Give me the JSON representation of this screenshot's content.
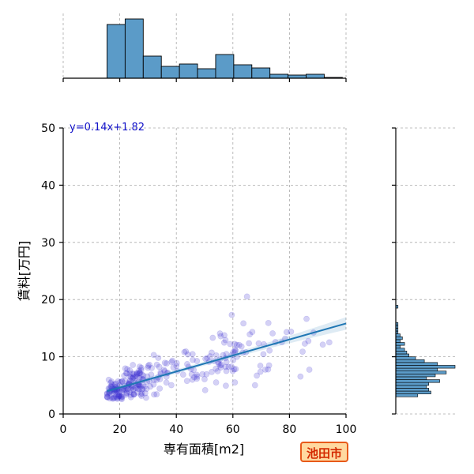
{
  "chart_data": {
    "type": "scatter",
    "xlabel": "専有面積[m2]",
    "ylabel": "賃料[万円]",
    "xlim": [
      0,
      100
    ],
    "ylim": [
      0,
      50
    ],
    "xticks": [
      0,
      20,
      40,
      60,
      80,
      100
    ],
    "yticks": [
      0,
      10,
      20,
      30,
      40,
      50
    ],
    "grid": true,
    "regression": {
      "equation": "y=0.14x+1.82",
      "slope": 0.14,
      "intercept": 1.82,
      "x_range": [
        15.5,
        100
      ],
      "color": "#1f77b4"
    },
    "scatter_color": "#3a2fd0",
    "top_histogram": {
      "bin_edges": [
        15.5,
        21.9,
        28.3,
        34.7,
        41.1,
        47.5,
        53.9,
        60.3,
        66.7,
        73.1,
        79.5,
        85.9,
        92.3,
        98.7
      ],
      "counts": [
        68,
        75,
        28,
        15,
        18,
        12,
        30,
        17,
        13,
        5,
        4,
        5,
        1
      ],
      "color": "#5b9bc8"
    },
    "right_histogram": {
      "bin_edges": [
        3,
        3.5,
        4,
        4.5,
        5,
        5.5,
        6,
        6.5,
        7,
        7.5,
        8,
        8.5,
        9,
        9.5,
        10,
        10.5,
        11,
        11.5,
        12,
        12.5,
        13,
        13.5,
        14,
        14.5,
        15,
        15.5,
        16,
        16.5,
        17,
        17.5,
        18,
        18.5,
        19
      ],
      "counts": [
        10,
        16,
        15,
        14,
        15,
        20,
        14,
        18,
        23,
        19,
        27,
        19,
        13,
        9,
        6,
        5,
        4,
        2,
        4,
        2,
        3,
        2,
        1,
        1,
        1,
        1,
        0,
        0,
        0,
        0,
        0,
        1
      ],
      "color": "#5b9bc8"
    }
  },
  "badge": {
    "label": "池田市"
  }
}
